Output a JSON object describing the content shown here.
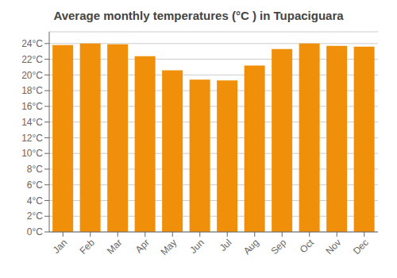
{
  "chart_data": {
    "type": "bar",
    "title": "Average monthly temperatures (°C ) in Tupaciguara",
    "categories": [
      "Jan",
      "Feb",
      "Mar",
      "Apr",
      "May",
      "Jun",
      "Jul",
      "Aug",
      "Sep",
      "Oct",
      "Nov",
      "Dec"
    ],
    "values": [
      23.8,
      24.0,
      23.9,
      22.4,
      20.6,
      19.4,
      19.3,
      21.2,
      23.3,
      24.0,
      23.7,
      23.6
    ],
    "color": "#F0900A",
    "ylim": [
      0,
      25.5
    ],
    "yticks": [
      {
        "value": 0,
        "label": "0°C"
      },
      {
        "value": 2,
        "label": "2°C"
      },
      {
        "value": 4,
        "label": "4°C"
      },
      {
        "value": 6,
        "label": "6°C"
      },
      {
        "value": 8,
        "label": "8°C"
      },
      {
        "value": 10,
        "label": "10°C"
      },
      {
        "value": 12,
        "label": "12°C"
      },
      {
        "value": 14,
        "label": "14°C"
      },
      {
        "value": 16,
        "label": "16°C"
      },
      {
        "value": 18,
        "label": "18°C"
      },
      {
        "value": 20,
        "label": "20°C"
      },
      {
        "value": 22,
        "label": "22°C"
      },
      {
        "value": 24,
        "label": "24°C"
      }
    ],
    "grid": true
  }
}
